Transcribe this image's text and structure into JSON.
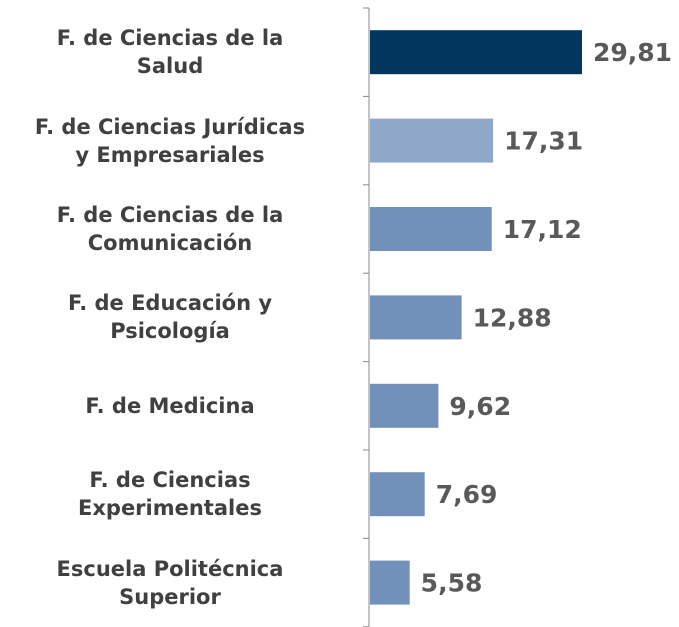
{
  "chart_data": {
    "type": "bar",
    "orientation": "horizontal",
    "categories": [
      "F. de Ciencias de la\nSalud",
      "F. de Ciencias Jurídicas\ny Empresariales",
      "F. de Ciencias de la\nComunicación",
      "F. de Educación y\nPsicología",
      "F. de Medicina",
      "F. de Ciencias\nExperimentales",
      "Escuela Politécnica\nSuperior"
    ],
    "values": [
      29.81,
      17.31,
      17.12,
      12.88,
      9.62,
      7.69,
      5.58
    ],
    "value_labels": [
      "29,81",
      "17,31",
      "17,12",
      "12,88",
      "9,62",
      "7,69",
      "5,58"
    ],
    "colors": [
      "#003660",
      "#8fa8c9",
      "#7191ba",
      "#7191ba",
      "#7191ba",
      "#7191ba",
      "#7191ba"
    ]
  }
}
